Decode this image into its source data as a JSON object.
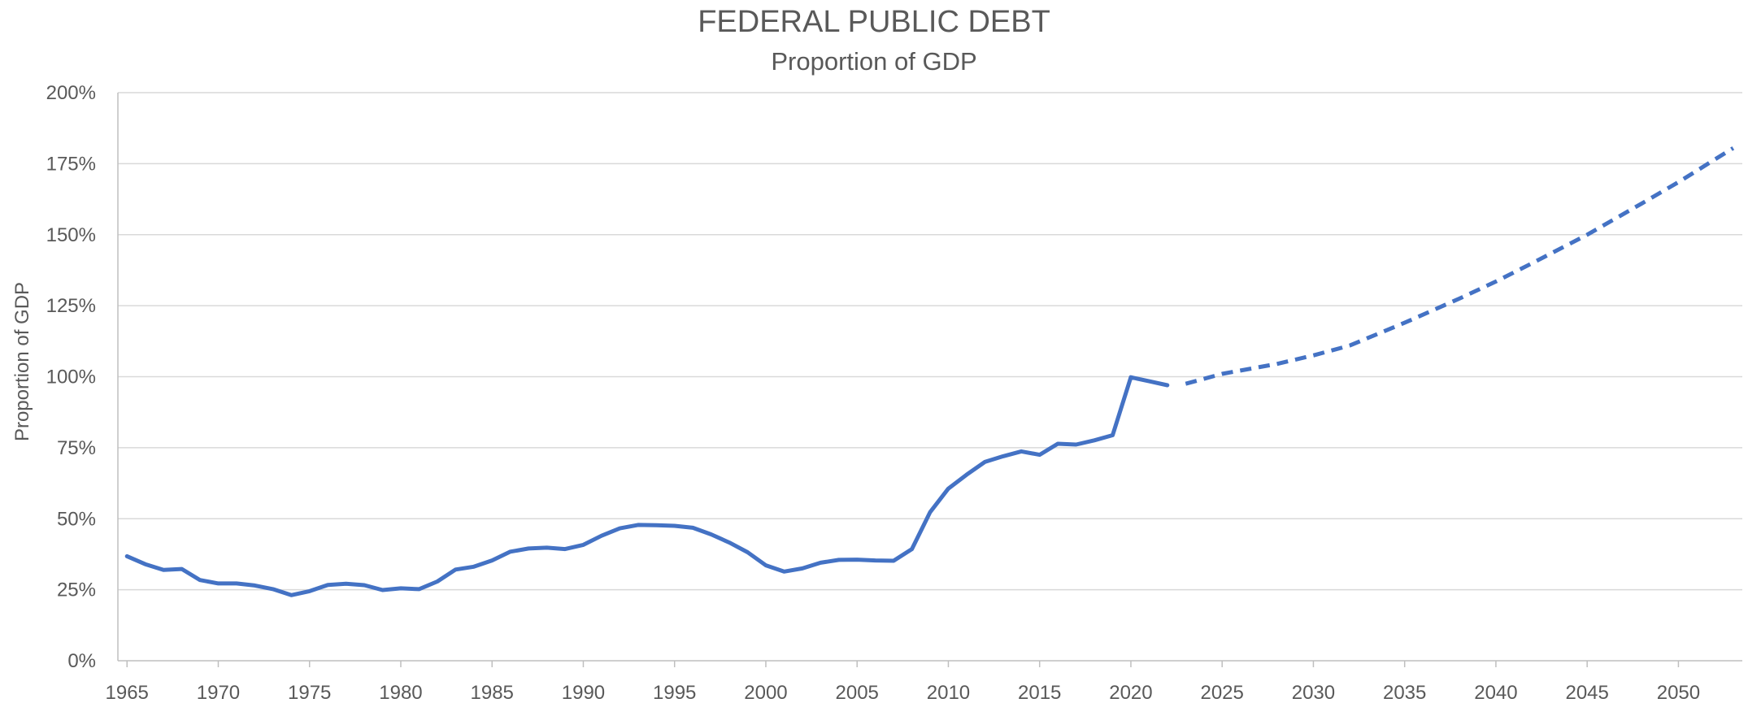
{
  "chart_data": {
    "type": "line",
    "title": "FEDERAL PUBLIC DEBT",
    "subtitle": "Proportion of GDP",
    "xlabel": "",
    "ylabel": "Proportion of GDP",
    "xlim": [
      1964.5,
      2053.5
    ],
    "ylim": [
      0,
      200
    ],
    "y_ticks": [
      0,
      25,
      50,
      75,
      100,
      125,
      150,
      175,
      200
    ],
    "y_tick_labels": [
      "0%",
      "25%",
      "50%",
      "75%",
      "100%",
      "125%",
      "150%",
      "175%",
      "200%"
    ],
    "x_ticks": [
      1965,
      1970,
      1975,
      1980,
      1985,
      1990,
      1995,
      2000,
      2005,
      2010,
      2015,
      2020,
      2025,
      2030,
      2035,
      2040,
      2045,
      2050
    ],
    "x_tick_labels": [
      "1965",
      "1970",
      "1975",
      "1980",
      "1985",
      "1990",
      "1995",
      "2000",
      "2005",
      "2010",
      "2015",
      "2020",
      "2025",
      "2030",
      "2035",
      "2040",
      "2045",
      "2050"
    ],
    "grid": true,
    "legend": "none",
    "color": "#4472C4",
    "series": [
      {
        "style": "solid",
        "x": [
          1965,
          1966,
          1967,
          1968,
          1969,
          1970,
          1971,
          1972,
          1973,
          1974,
          1975,
          1976,
          1977,
          1978,
          1979,
          1980,
          1981,
          1982,
          1983,
          1984,
          1985,
          1986,
          1987,
          1988,
          1989,
          1990,
          1991,
          1992,
          1993,
          1994,
          1995,
          1996,
          1997,
          1998,
          1999,
          2000,
          2001,
          2002,
          2003,
          2004,
          2005,
          2006,
          2007,
          2008,
          2009,
          2010,
          2011,
          2012,
          2013,
          2014,
          2015,
          2016,
          2017,
          2018,
          2019,
          2020,
          2021,
          2022
        ],
        "values": [
          36.8,
          34.0,
          32.0,
          32.3,
          28.4,
          27.2,
          27.2,
          26.5,
          25.2,
          23.1,
          24.5,
          26.7,
          27.1,
          26.6,
          24.9,
          25.5,
          25.2,
          27.9,
          32.1,
          33.1,
          35.3,
          38.4,
          39.5,
          39.8,
          39.3,
          40.8,
          44.0,
          46.6,
          47.8,
          47.7,
          47.5,
          46.8,
          44.5,
          41.6,
          38.2,
          33.6,
          31.4,
          32.5,
          34.5,
          35.5,
          35.6,
          35.3,
          35.2,
          39.3,
          52.3,
          60.6,
          65.5,
          70.0,
          72.0,
          73.7,
          72.5,
          76.4,
          76.1,
          77.6,
          79.4,
          99.8,
          98.4,
          97.0
        ]
      },
      {
        "style": "dashed",
        "x": [
          2023,
          2025,
          2028,
          2030,
          2032,
          2035,
          2038,
          2040,
          2042,
          2045,
          2048,
          2050,
          2053
        ],
        "values": [
          97.5,
          101.0,
          104.5,
          107.5,
          111.0,
          119.0,
          127.5,
          133.5,
          140.0,
          150.0,
          161.0,
          168.5,
          180.5
        ]
      }
    ]
  }
}
